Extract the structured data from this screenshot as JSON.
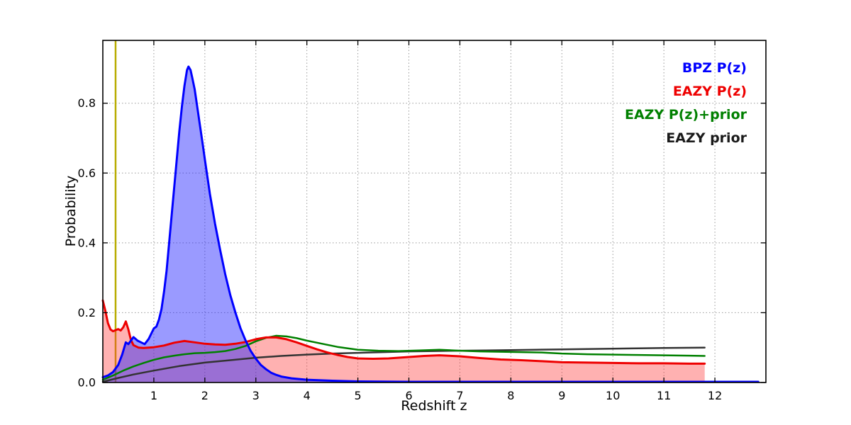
{
  "chart_data": {
    "type": "line",
    "title": "",
    "xlabel": "Redshift z",
    "ylabel": "Probability",
    "xlim": [
      0,
      13
    ],
    "ylim": [
      0,
      0.98
    ],
    "xticks": [
      "1",
      "2",
      "3",
      "4",
      "5",
      "6",
      "7",
      "8",
      "9",
      "10",
      "11",
      "12"
    ],
    "yticks": [
      "0.0",
      "0.2",
      "0.4",
      "0.6",
      "0.8"
    ],
    "grid": true,
    "grid_color": "#999999",
    "legend_position": "upper right",
    "vline": {
      "x": 0.25,
      "color": "#b8ac00",
      "width": 2.5
    },
    "legend": [
      {
        "label": "BPZ P(z)",
        "color": "#0000ff"
      },
      {
        "label": "EAZY P(z)",
        "color": "#ee0000"
      },
      {
        "label": "EAZY P(z)+prior",
        "color": "#008000"
      },
      {
        "label": "EAZY prior",
        "color": "#1a1a1a"
      }
    ],
    "series": [
      {
        "name": "EAZY prior",
        "color": "#333333",
        "line_width": 2.5,
        "fill": null,
        "points": [
          [
            0,
            0.002
          ],
          [
            0.3,
            0.013
          ],
          [
            0.6,
            0.023
          ],
          [
            1.0,
            0.034
          ],
          [
            1.5,
            0.047
          ],
          [
            2.0,
            0.057
          ],
          [
            2.5,
            0.064
          ],
          [
            3.0,
            0.071
          ],
          [
            3.5,
            0.076
          ],
          [
            4.0,
            0.08
          ],
          [
            4.5,
            0.083
          ],
          [
            5.0,
            0.085
          ],
          [
            5.5,
            0.087
          ],
          [
            6.0,
            0.089
          ],
          [
            6.5,
            0.09
          ],
          [
            7.0,
            0.091
          ],
          [
            7.5,
            0.092
          ],
          [
            8.0,
            0.093
          ],
          [
            8.5,
            0.094
          ],
          [
            9.0,
            0.095
          ],
          [
            9.5,
            0.096
          ],
          [
            10.0,
            0.097
          ],
          [
            10.5,
            0.098
          ],
          [
            11.0,
            0.099
          ],
          [
            11.8,
            0.1
          ]
        ]
      },
      {
        "name": "EAZY P(z)+prior",
        "color": "#008000",
        "line_width": 2.5,
        "fill": null,
        "points": [
          [
            0,
            0.008
          ],
          [
            0.2,
            0.02
          ],
          [
            0.4,
            0.034
          ],
          [
            0.6,
            0.046
          ],
          [
            0.8,
            0.056
          ],
          [
            1.0,
            0.065
          ],
          [
            1.2,
            0.072
          ],
          [
            1.4,
            0.077
          ],
          [
            1.6,
            0.081
          ],
          [
            1.8,
            0.084
          ],
          [
            2.0,
            0.085
          ],
          [
            2.2,
            0.087
          ],
          [
            2.4,
            0.09
          ],
          [
            2.6,
            0.096
          ],
          [
            2.8,
            0.105
          ],
          [
            3.0,
            0.118
          ],
          [
            3.2,
            0.128
          ],
          [
            3.4,
            0.134
          ],
          [
            3.6,
            0.132
          ],
          [
            3.8,
            0.127
          ],
          [
            4.0,
            0.12
          ],
          [
            4.3,
            0.111
          ],
          [
            4.6,
            0.102
          ],
          [
            5.0,
            0.094
          ],
          [
            5.4,
            0.091
          ],
          [
            5.8,
            0.09
          ],
          [
            6.2,
            0.092
          ],
          [
            6.6,
            0.094
          ],
          [
            7.0,
            0.091
          ],
          [
            7.4,
            0.089
          ],
          [
            7.8,
            0.088
          ],
          [
            8.2,
            0.087
          ],
          [
            8.6,
            0.086
          ],
          [
            9.0,
            0.083
          ],
          [
            9.5,
            0.081
          ],
          [
            10.0,
            0.08
          ],
          [
            10.5,
            0.079
          ],
          [
            11.0,
            0.078
          ],
          [
            11.5,
            0.077
          ],
          [
            11.8,
            0.076
          ]
        ]
      },
      {
        "name": "EAZY P(z)",
        "color": "#ee0000",
        "line_width": 3,
        "fill": "rgba(255,50,50,0.38)",
        "points": [
          [
            0,
            0.235
          ],
          [
            0.05,
            0.205
          ],
          [
            0.1,
            0.17
          ],
          [
            0.15,
            0.152
          ],
          [
            0.2,
            0.147
          ],
          [
            0.25,
            0.15
          ],
          [
            0.3,
            0.153
          ],
          [
            0.35,
            0.149
          ],
          [
            0.4,
            0.158
          ],
          [
            0.45,
            0.175
          ],
          [
            0.5,
            0.152
          ],
          [
            0.55,
            0.122
          ],
          [
            0.6,
            0.107
          ],
          [
            0.7,
            0.1
          ],
          [
            0.8,
            0.099
          ],
          [
            0.9,
            0.1
          ],
          [
            1.0,
            0.101
          ],
          [
            1.2,
            0.106
          ],
          [
            1.4,
            0.114
          ],
          [
            1.6,
            0.119
          ],
          [
            1.8,
            0.115
          ],
          [
            2.0,
            0.111
          ],
          [
            2.2,
            0.109
          ],
          [
            2.4,
            0.108
          ],
          [
            2.6,
            0.111
          ],
          [
            2.8,
            0.116
          ],
          [
            3.0,
            0.124
          ],
          [
            3.2,
            0.129
          ],
          [
            3.4,
            0.129
          ],
          [
            3.6,
            0.124
          ],
          [
            3.8,
            0.115
          ],
          [
            4.0,
            0.105
          ],
          [
            4.2,
            0.095
          ],
          [
            4.4,
            0.086
          ],
          [
            4.6,
            0.079
          ],
          [
            4.8,
            0.073
          ],
          [
            5.0,
            0.069
          ],
          [
            5.3,
            0.068
          ],
          [
            5.6,
            0.069
          ],
          [
            6.0,
            0.073
          ],
          [
            6.3,
            0.076
          ],
          [
            6.6,
            0.078
          ],
          [
            7.0,
            0.075
          ],
          [
            7.4,
            0.07
          ],
          [
            7.8,
            0.066
          ],
          [
            8.2,
            0.064
          ],
          [
            8.6,
            0.061
          ],
          [
            9.0,
            0.058
          ],
          [
            9.5,
            0.057
          ],
          [
            10.0,
            0.056
          ],
          [
            10.5,
            0.055
          ],
          [
            11.0,
            0.055
          ],
          [
            11.5,
            0.054
          ],
          [
            11.8,
            0.054
          ]
        ]
      },
      {
        "name": "BPZ P(z)",
        "color": "#0000ff",
        "line_width": 3,
        "fill": "rgba(30,30,255,0.45)",
        "points": [
          [
            0,
            0.015
          ],
          [
            0.1,
            0.02
          ],
          [
            0.2,
            0.03
          ],
          [
            0.3,
            0.05
          ],
          [
            0.38,
            0.08
          ],
          [
            0.45,
            0.115
          ],
          [
            0.5,
            0.11
          ],
          [
            0.55,
            0.12
          ],
          [
            0.6,
            0.13
          ],
          [
            0.68,
            0.12
          ],
          [
            0.75,
            0.115
          ],
          [
            0.82,
            0.11
          ],
          [
            0.9,
            0.125
          ],
          [
            0.95,
            0.14
          ],
          [
            1.0,
            0.155
          ],
          [
            1.05,
            0.16
          ],
          [
            1.1,
            0.18
          ],
          [
            1.15,
            0.21
          ],
          [
            1.2,
            0.26
          ],
          [
            1.25,
            0.32
          ],
          [
            1.3,
            0.4
          ],
          [
            1.35,
            0.48
          ],
          [
            1.4,
            0.56
          ],
          [
            1.45,
            0.64
          ],
          [
            1.5,
            0.72
          ],
          [
            1.55,
            0.79
          ],
          [
            1.6,
            0.85
          ],
          [
            1.65,
            0.895
          ],
          [
            1.68,
            0.905
          ],
          [
            1.72,
            0.895
          ],
          [
            1.75,
            0.875
          ],
          [
            1.8,
            0.84
          ],
          [
            1.85,
            0.79
          ],
          [
            1.9,
            0.74
          ],
          [
            1.95,
            0.69
          ],
          [
            2.0,
            0.64
          ],
          [
            2.1,
            0.54
          ],
          [
            2.2,
            0.455
          ],
          [
            2.3,
            0.38
          ],
          [
            2.4,
            0.31
          ],
          [
            2.5,
            0.25
          ],
          [
            2.6,
            0.2
          ],
          [
            2.7,
            0.155
          ],
          [
            2.8,
            0.12
          ],
          [
            2.9,
            0.09
          ],
          [
            3.0,
            0.068
          ],
          [
            3.1,
            0.05
          ],
          [
            3.2,
            0.038
          ],
          [
            3.3,
            0.028
          ],
          [
            3.4,
            0.022
          ],
          [
            3.5,
            0.017
          ],
          [
            3.7,
            0.012
          ],
          [
            4.0,
            0.008
          ],
          [
            4.5,
            0.005
          ],
          [
            5.0,
            0.003
          ],
          [
            6.0,
            0.002
          ],
          [
            8.0,
            0.002
          ],
          [
            10.0,
            0.002
          ],
          [
            12.0,
            0.002
          ],
          [
            12.85,
            0.002
          ]
        ]
      }
    ]
  }
}
